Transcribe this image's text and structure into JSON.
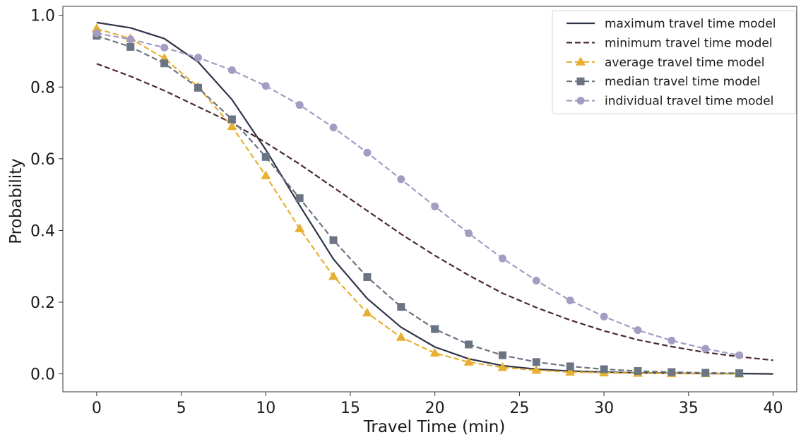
{
  "chart_data": {
    "type": "line",
    "title": "",
    "xlabel": "Travel Time (min)",
    "ylabel": "Probability",
    "xlim": [
      -2,
      41.4
    ],
    "ylim": [
      -0.05,
      1.025
    ],
    "x_ticks": [
      0,
      5,
      10,
      15,
      20,
      25,
      30,
      35,
      40
    ],
    "y_ticks": [
      0.0,
      0.2,
      0.4,
      0.6,
      0.8,
      1.0
    ],
    "x_tick_labels": [
      "0",
      "5",
      "10",
      "15",
      "20",
      "25",
      "30",
      "35",
      "40"
    ],
    "y_tick_labels": [
      "0.0",
      "0.2",
      "0.4",
      "0.6",
      "0.8",
      "1.0"
    ],
    "grid": false,
    "legend_position": "top-right",
    "series": [
      {
        "name": "maximum travel time model",
        "color": "#2e3447",
        "style": "solid",
        "marker": "none",
        "x": [
          0,
          2,
          4,
          6,
          8,
          10,
          12,
          14,
          16,
          18,
          20,
          22,
          24,
          26,
          28,
          30,
          32,
          34,
          36,
          38,
          40
        ],
        "y": [
          0.98,
          0.965,
          0.935,
          0.87,
          0.765,
          0.625,
          0.47,
          0.32,
          0.21,
          0.13,
          0.075,
          0.042,
          0.023,
          0.013,
          0.008,
          0.005,
          0.003,
          0.002,
          0.001,
          0.001,
          0.0
        ]
      },
      {
        "name": "minimum travel time model",
        "color": "#4b2a2f",
        "style": "dashed",
        "marker": "none",
        "x": [
          0,
          2,
          4,
          6,
          8,
          10,
          12,
          14,
          16,
          18,
          20,
          22,
          24,
          26,
          28,
          30,
          32,
          34,
          36,
          38,
          40
        ],
        "y": [
          0.865,
          0.83,
          0.79,
          0.745,
          0.7,
          0.645,
          0.585,
          0.52,
          0.455,
          0.39,
          0.33,
          0.275,
          0.225,
          0.185,
          0.15,
          0.12,
          0.095,
          0.076,
          0.06,
          0.048,
          0.038
        ]
      },
      {
        "name": "average travel time model",
        "color": "#e6b033",
        "style": "dashed",
        "marker": "triangle",
        "x": [
          0,
          2,
          4,
          6,
          8,
          10,
          12,
          14,
          16,
          18,
          20,
          22,
          24,
          26,
          28,
          30,
          32,
          34,
          36,
          38
        ],
        "y": [
          0.963,
          0.935,
          0.88,
          0.8,
          0.69,
          0.553,
          0.405,
          0.272,
          0.17,
          0.102,
          0.058,
          0.033,
          0.018,
          0.01,
          0.005,
          0.003,
          0.002,
          0.001,
          0.001,
          0.0
        ]
      },
      {
        "name": "median travel time model",
        "color": "#6b7482",
        "style": "dashed",
        "marker": "square",
        "x": [
          0,
          2,
          4,
          6,
          8,
          10,
          12,
          14,
          16,
          18,
          20,
          22,
          24,
          26,
          28,
          30,
          32,
          34,
          36,
          38
        ],
        "y": [
          0.943,
          0.912,
          0.866,
          0.798,
          0.71,
          0.605,
          0.49,
          0.373,
          0.27,
          0.187,
          0.125,
          0.082,
          0.052,
          0.033,
          0.021,
          0.013,
          0.008,
          0.005,
          0.003,
          0.002
        ]
      },
      {
        "name": "individual travel time model",
        "color": "#a59cc3",
        "style": "dashed",
        "marker": "circle",
        "x": [
          0,
          2,
          4,
          6,
          8,
          10,
          12,
          14,
          16,
          18,
          20,
          22,
          24,
          26,
          28,
          30,
          32,
          34,
          36,
          38
        ],
        "y": [
          0.95,
          0.933,
          0.91,
          0.882,
          0.847,
          0.803,
          0.75,
          0.687,
          0.617,
          0.543,
          0.467,
          0.392,
          0.322,
          0.26,
          0.205,
          0.16,
          0.122,
          0.093,
          0.07,
          0.052
        ]
      }
    ]
  }
}
